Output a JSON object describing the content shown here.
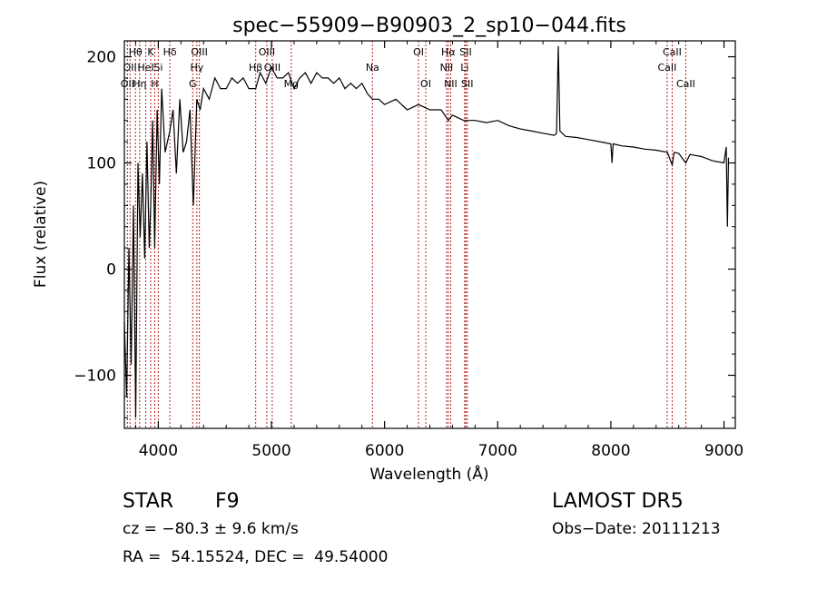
{
  "chart_data": {
    "type": "line",
    "title": "spec−55909−B90903_2_sp10−044.fits",
    "xlabel": "Wavelength (Å)",
    "ylabel": "Flux (relative)",
    "xlim": [
      3700,
      9100
    ],
    "ylim": [
      -150,
      215
    ],
    "xticks": [
      4000,
      5000,
      6000,
      7000,
      8000,
      9000
    ],
    "xtick_labels": [
      "4000",
      "5000",
      "6000",
      "7000",
      "8000",
      "9000"
    ],
    "yticks": [
      -100,
      0,
      100,
      200
    ],
    "ytick_labels": [
      "−100",
      "0",
      "100",
      "200"
    ],
    "grid": false,
    "series": [
      {
        "color": "#000000",
        "x": [
          3700,
          3720,
          3740,
          3760,
          3780,
          3800,
          3820,
          3840,
          3860,
          3880,
          3900,
          3920,
          3933,
          3950,
          3968,
          3990,
          4010,
          4030,
          4060,
          4102,
          4130,
          4160,
          4190,
          4220,
          4250,
          4280,
          4310,
          4340,
          4370,
          4400,
          4450,
          4500,
          4550,
          4600,
          4650,
          4700,
          4750,
          4800,
          4861,
          4900,
          4950,
          5000,
          5050,
          5100,
          5150,
          5200,
          5250,
          5300,
          5350,
          5400,
          5450,
          5500,
          5550,
          5600,
          5650,
          5700,
          5750,
          5800,
          5850,
          5893,
          5950,
          6000,
          6100,
          6200,
          6300,
          6400,
          6500,
          6563,
          6600,
          6700,
          6800,
          6900,
          7000,
          7100,
          7200,
          7300,
          7400,
          7500,
          7520,
          7535,
          7550,
          7600,
          7700,
          7800,
          7900,
          8000,
          8010,
          8020,
          8100,
          8200,
          8300,
          8400,
          8500,
          8542,
          8560,
          8600,
          8662,
          8700,
          8800,
          8900,
          9000,
          9020,
          9030,
          9040
        ],
        "y": [
          -50,
          -120,
          20,
          -90,
          60,
          -140,
          100,
          30,
          90,
          10,
          120,
          20,
          60,
          140,
          20,
          150,
          80,
          170,
          110,
          130,
          150,
          90,
          160,
          110,
          120,
          150,
          60,
          160,
          150,
          170,
          160,
          180,
          170,
          170,
          180,
          175,
          180,
          170,
          170,
          185,
          175,
          190,
          180,
          180,
          185,
          170,
          180,
          185,
          175,
          185,
          180,
          180,
          175,
          180,
          170,
          175,
          170,
          175,
          165,
          160,
          160,
          155,
          160,
          150,
          155,
          150,
          150,
          140,
          145,
          140,
          140,
          138,
          140,
          135,
          132,
          130,
          128,
          126,
          128,
          210,
          130,
          125,
          124,
          122,
          120,
          118,
          100,
          118,
          116,
          115,
          113,
          112,
          110,
          98,
          110,
          109,
          100,
          108,
          106,
          102,
          100,
          115,
          40,
          105
        ]
      }
    ],
    "line_labels": [
      {
        "x": 3727,
        "lines": [
          "OII"
        ],
        "row": 2
      },
      {
        "x": 3750,
        "lines": [
          "OII"
        ],
        "row": 1
      },
      {
        "x": 3798,
        "lines": [
          "Hθ"
        ],
        "row": 0
      },
      {
        "x": 3835,
        "lines": [
          "Hη"
        ],
        "row": 2
      },
      {
        "x": 3889,
        "lines": [
          "HeI"
        ],
        "row": 1
      },
      {
        "x": 3933,
        "lines": [
          "K"
        ],
        "row": 0
      },
      {
        "x": 3968,
        "lines": [
          "H"
        ],
        "row": 2
      },
      {
        "x": 4000,
        "lines": [
          "Si"
        ],
        "row": 1
      },
      {
        "x": 4102,
        "lines": [
          "Hδ"
        ],
        "row": 0
      },
      {
        "x": 4304,
        "lines": [
          "G"
        ],
        "row": 2
      },
      {
        "x": 4341,
        "lines": [
          "Hγ"
        ],
        "row": 1
      },
      {
        "x": 4363,
        "lines": [
          "OIII"
        ],
        "row": 0
      },
      {
        "x": 4861,
        "lines": [
          "Hβ"
        ],
        "row": 1
      },
      {
        "x": 4959,
        "lines": [
          "OIII"
        ],
        "row": 0
      },
      {
        "x": 5007,
        "lines": [
          "OIII"
        ],
        "row": 1
      },
      {
        "x": 5175,
        "lines": [
          "Mg"
        ],
        "row": 2
      },
      {
        "x": 5893,
        "lines": [
          "Na"
        ],
        "row": 1
      },
      {
        "x": 6300,
        "lines": [
          "OI"
        ],
        "row": 0
      },
      {
        "x": 6364,
        "lines": [
          "OI"
        ],
        "row": 2
      },
      {
        "x": 6548,
        "lines": [
          "NII"
        ],
        "row": 1
      },
      {
        "x": 6563,
        "lines": [
          "Hα"
        ],
        "row": 0
      },
      {
        "x": 6584,
        "lines": [
          "NII"
        ],
        "row": 2
      },
      {
        "x": 6708,
        "lines": [
          "Li"
        ],
        "row": 1
      },
      {
        "x": 6717,
        "lines": [
          "SII"
        ],
        "row": 0
      },
      {
        "x": 6731,
        "lines": [
          "SII"
        ],
        "row": 2
      },
      {
        "x": 8498,
        "lines": [
          "CaII"
        ],
        "row": 1
      },
      {
        "x": 8542,
        "lines": [
          "CaII"
        ],
        "row": 0
      },
      {
        "x": 8662,
        "lines": [
          "CaII"
        ],
        "row": 2
      }
    ],
    "line_marker_color": "#b22222"
  },
  "info": {
    "object_class": "STAR",
    "subclass": "F9",
    "survey": "LAMOST DR5",
    "cz": "cz = −80.3 ± 9.6 km/s",
    "obs_date": "Obs−Date: 20111213",
    "coords": "RA =  54.15524, DEC =  49.54000"
  }
}
